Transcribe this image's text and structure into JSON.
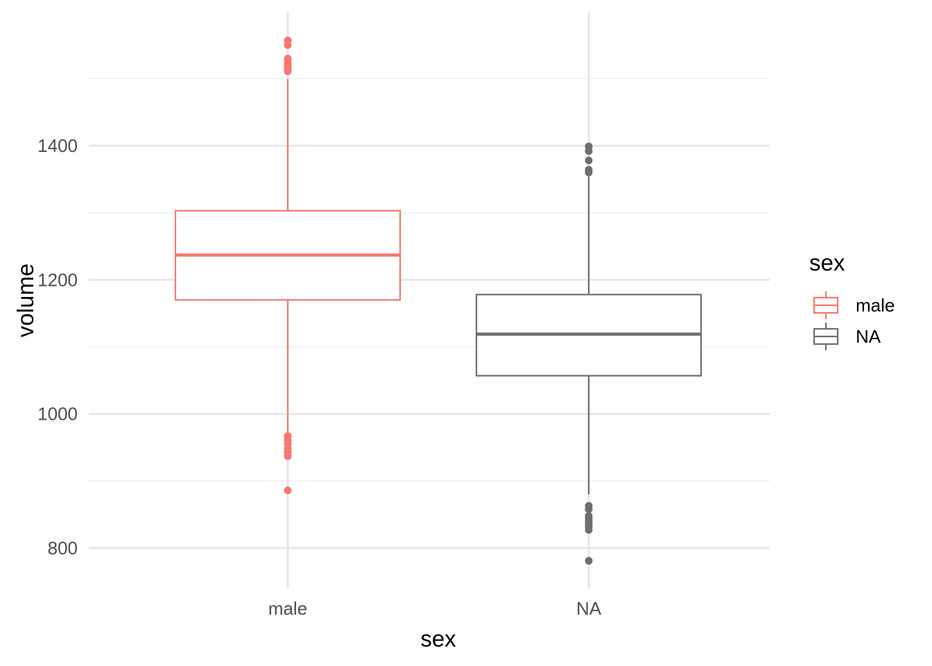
{
  "chart_data": {
    "type": "boxplot",
    "title": "",
    "xlabel": "sex",
    "ylabel": "volume",
    "categories": [
      "male",
      "NA"
    ],
    "y_ticks": [
      800,
      1000,
      1200,
      1400
    ],
    "ylim": [
      745,
      1570
    ],
    "grid": true,
    "legend": {
      "title": "sex",
      "position": "right",
      "entries": [
        "male",
        "NA"
      ]
    },
    "colors": {
      "male": "#F8766D",
      "NA": "#6E6E6E",
      "grid_major": "#E6E6E6",
      "grid_minor": "#EFEFEF"
    },
    "boxes": [
      {
        "name": "male",
        "whisker_low": 971,
        "q1": 1170,
        "median": 1237,
        "q3": 1303,
        "whisker_high": 1500,
        "outliers": [
          1557,
          1550,
          1530,
          1527,
          1522,
          1518,
          1514,
          1511,
          967,
          961,
          955,
          948,
          943,
          937,
          886
        ]
      },
      {
        "name": "NA",
        "whisker_low": 880,
        "q1": 1057,
        "median": 1119,
        "q3": 1178,
        "whisker_high": 1357,
        "outliers": [
          1399,
          1392,
          1378,
          1364,
          1360,
          863,
          858,
          848,
          844,
          840,
          836,
          832,
          827,
          781
        ]
      }
    ]
  }
}
